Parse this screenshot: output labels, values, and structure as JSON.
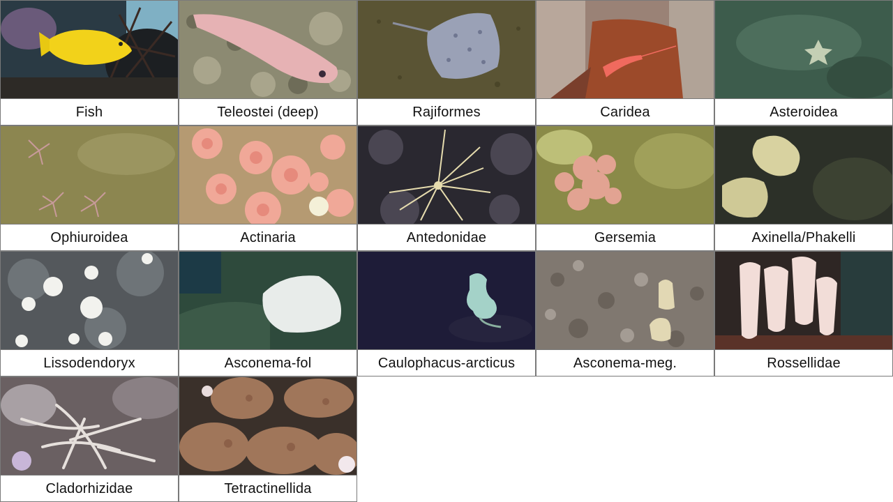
{
  "tiles": [
    {
      "label": "Fish",
      "image": "yellow-tang-fish-photo"
    },
    {
      "label": "Teleostei (deep)",
      "image": "deep-sea-fish-photo"
    },
    {
      "label": "Rajiformes",
      "image": "skate-ray-photo"
    },
    {
      "label": "Caridea",
      "image": "red-shrimp-photo"
    },
    {
      "label": "Asteroidea",
      "image": "sea-star-photo"
    },
    {
      "label": "Ophiuroidea",
      "image": "brittle-star-photo"
    },
    {
      "label": "Actinaria",
      "image": "sea-anemone-photo"
    },
    {
      "label": "Antedonidae",
      "image": "feather-star-photo"
    },
    {
      "label": "Gersemia",
      "image": "soft-coral-photo"
    },
    {
      "label": "Axinella/Phakelli",
      "image": "yellow-sponge-photo"
    },
    {
      "label": "Lissodendoryx",
      "image": "white-sponge-photo"
    },
    {
      "label": "Asconema-fol",
      "image": "white-glass-sponge-photo"
    },
    {
      "label": "Caulophacus-arcticus",
      "image": "stalked-sponge-photo"
    },
    {
      "label": "Asconema-meg.",
      "image": "cup-sponge-photo"
    },
    {
      "label": "Rossellidae",
      "image": "vase-sponge-cluster-photo"
    },
    {
      "label": "Cladorhizidae",
      "image": "carnivorous-sponge-photo"
    },
    {
      "label": "Tetractinellida",
      "image": "round-sponge-photo"
    }
  ]
}
